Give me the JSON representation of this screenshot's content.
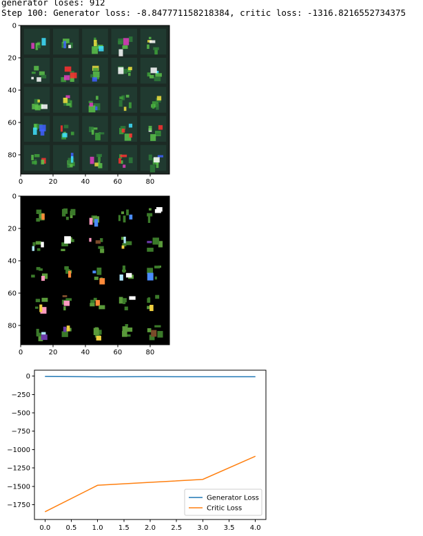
{
  "log_lines": [
    "generator loses: 912",
    "Step 100: Generator loss: -8.847771158218384, critic loss: -1316.8216552734375"
  ],
  "image_grids": [
    {
      "name": "generated-samples",
      "xticks": [
        "0",
        "20",
        "40",
        "60",
        "80"
      ],
      "yticks": [
        "0",
        "20",
        "40",
        "60",
        "80"
      ],
      "background": "#1c2a24"
    },
    {
      "name": "real-samples",
      "xticks": [
        "0",
        "20",
        "40",
        "60",
        "80"
      ],
      "yticks": [
        "0",
        "20",
        "40",
        "60",
        "80"
      ],
      "background": "#000000"
    }
  ],
  "chart_data": {
    "type": "line",
    "title": "",
    "xlabel": "",
    "ylabel": "",
    "x": [
      0,
      1,
      2,
      3,
      4
    ],
    "xlim": [
      -0.2,
      4.2
    ],
    "ylim": [
      -1950,
      80
    ],
    "xticks": [
      0.0,
      0.5,
      1.0,
      1.5,
      2.0,
      2.5,
      3.0,
      3.5,
      4.0
    ],
    "yticks": [
      0,
      -250,
      -500,
      -750,
      -1000,
      -1250,
      -1500,
      -1750
    ],
    "grid": false,
    "legend_placement": "lower-right",
    "series": [
      {
        "name": "Generator Loss",
        "color": "#1f77b4",
        "values": [
          -5,
          -10,
          -8,
          -9,
          -9
        ]
      },
      {
        "name": "Critic Loss",
        "color": "#ff7f0e",
        "values": [
          -1845,
          -1485,
          -1445,
          -1405,
          -1090
        ]
      }
    ]
  }
}
